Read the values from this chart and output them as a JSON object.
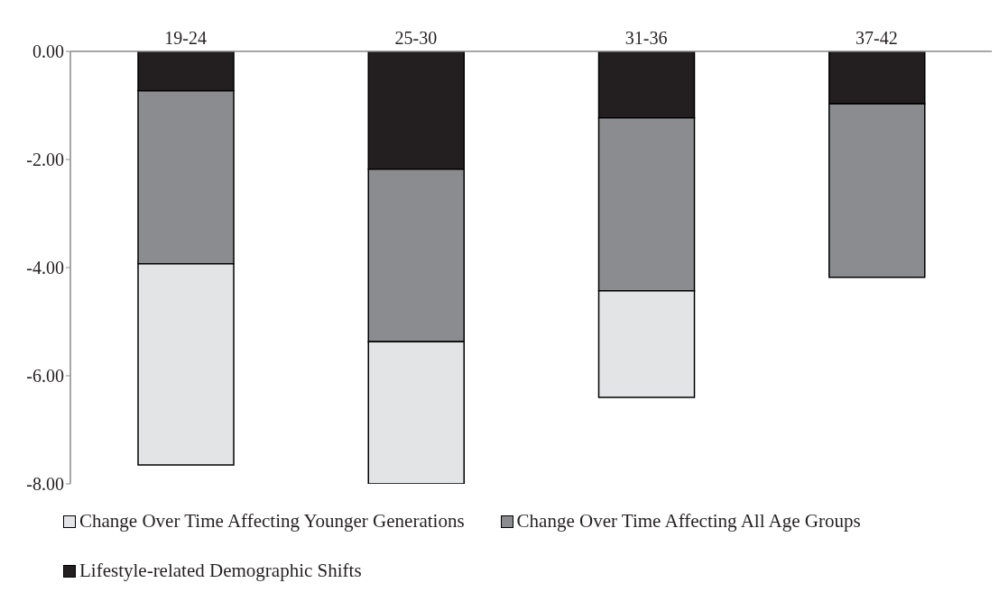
{
  "chart_data": {
    "type": "bar",
    "stacked": true,
    "categories": [
      "19-24",
      "25-30",
      "31-36",
      "37-42"
    ],
    "series": [
      {
        "name": "Lifestyle-related Demographic Shifts",
        "color": "#231f20",
        "values": [
          -0.73,
          -2.18,
          -1.23,
          -0.97
        ]
      },
      {
        "name": "Change Over Time Affecting All Age Groups",
        "color": "#8b8c8f",
        "values": [
          -3.2,
          -3.19,
          -3.2,
          -3.21
        ]
      },
      {
        "name": "Change Over Time Affecting Younger Generations",
        "color": "#e3e4e5",
        "values": [
          -3.72,
          -2.63,
          -1.97,
          null
        ]
      }
    ],
    "ylim": [
      -8,
      0
    ],
    "yticks": [
      {
        "value": 0,
        "label": "0.00"
      },
      {
        "value": -2,
        "label": "-2.00"
      },
      {
        "value": -4,
        "label": "-4.00"
      },
      {
        "value": -6,
        "label": "-6.00"
      },
      {
        "value": -8,
        "label": "-8.00"
      }
    ],
    "legend": "bottom"
  }
}
